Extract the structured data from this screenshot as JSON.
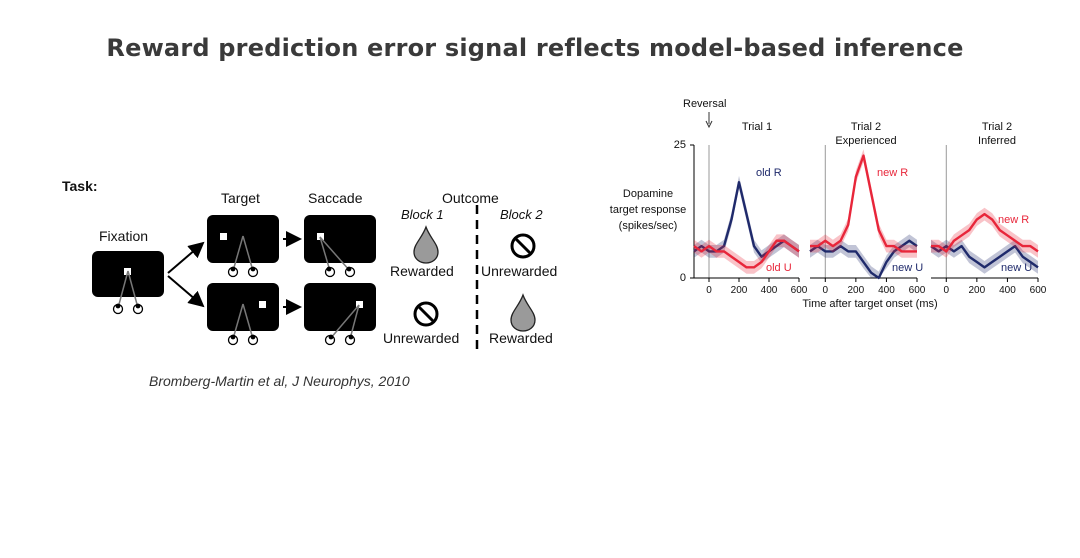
{
  "slide": {
    "title": "Reward prediction error signal reflects model-based inference",
    "citation": "Bromberg-Martin et al, J Neurophys, 2010"
  },
  "task": {
    "task_label": "Task:",
    "fixation_label": "Fixation",
    "target_label": "Target",
    "saccade_label": "Saccade",
    "outcome_label": "Outcome",
    "block1_label": "Block 1",
    "block2_label": "Block 2",
    "row1_block1": "Rewarded",
    "row1_block2": "Unrewarded",
    "row2_block1": "Unrewarded",
    "row2_block2": "Rewarded",
    "reward_icon": "water-drop-icon",
    "no_reward_icon": "prohibited-icon"
  },
  "plot": {
    "reversal_label": "Reversal",
    "ylabel_1": "Dopamine",
    "ylabel_2": "target response",
    "ylabel_3": "(spikes/sec)",
    "y_top_tick": "25",
    "y_bottom_tick": "0",
    "xlabel": "Time after target onset (ms)",
    "panels": [
      {
        "title_1": "Trial 1",
        "title_2": "",
        "label_blue": "old R",
        "label_red": "old U"
      },
      {
        "title_1": "Trial 2",
        "title_2": "Experienced",
        "label_blue": "new U",
        "label_red": "new R"
      },
      {
        "title_1": "Trial 2",
        "title_2": "Inferred",
        "label_blue": "new U",
        "label_red": "new R"
      }
    ],
    "colors": {
      "blue": "#1f2a6b",
      "red": "#e8263a"
    }
  },
  "chart_data": {
    "type": "line",
    "xlabel": "Time after target onset (ms)",
    "ylabel": "Dopamine target response (spikes/sec)",
    "ylim": [
      0,
      25
    ],
    "xlim": [
      -100,
      600
    ],
    "x_ticks": [
      0,
      200,
      400,
      600
    ],
    "panels": [
      {
        "title": "Trial 1",
        "x": [
          -100,
          -50,
          0,
          50,
          100,
          150,
          200,
          250,
          300,
          350,
          400,
          450,
          500,
          550,
          600
        ],
        "series": [
          {
            "name": "old R",
            "color": "blue",
            "values": [
              5,
              6,
              5,
              5,
              6,
              11,
              18,
              12,
              6,
              4,
              5,
              6,
              7,
              6,
              5
            ]
          },
          {
            "name": "old U",
            "color": "red",
            "values": [
              6,
              5,
              6,
              5,
              5,
              4,
              3,
              2,
              2,
              3,
              5,
              7,
              7,
              6,
              5
            ]
          }
        ]
      },
      {
        "title": "Trial 2 Experienced",
        "x": [
          -100,
          -50,
          0,
          50,
          100,
          150,
          200,
          250,
          300,
          350,
          400,
          450,
          500,
          550,
          600
        ],
        "series": [
          {
            "name": "new U",
            "color": "blue",
            "values": [
              5,
              6,
              5,
              5,
              6,
              5,
              5,
              3,
              1,
              0,
              3,
              5,
              6,
              7,
              6
            ]
          },
          {
            "name": "new R",
            "color": "red",
            "values": [
              6,
              6,
              7,
              6,
              7,
              10,
              19,
              23,
              16,
              9,
              6,
              6,
              5,
              5,
              5
            ]
          }
        ]
      },
      {
        "title": "Trial 2 Inferred",
        "x": [
          -100,
          -50,
          0,
          50,
          100,
          150,
          200,
          250,
          300,
          350,
          400,
          450,
          500,
          550,
          600
        ],
        "series": [
          {
            "name": "new U",
            "color": "blue",
            "values": [
              6,
              5,
              6,
              5,
              6,
              4,
              3,
              2,
              3,
              4,
              5,
              6,
              4,
              3,
              2
            ]
          },
          {
            "name": "new R",
            "color": "red",
            "values": [
              6,
              6,
              5,
              7,
              8,
              9,
              11,
              12,
              11,
              9,
              8,
              7,
              6,
              6,
              5
            ]
          }
        ]
      }
    ]
  }
}
